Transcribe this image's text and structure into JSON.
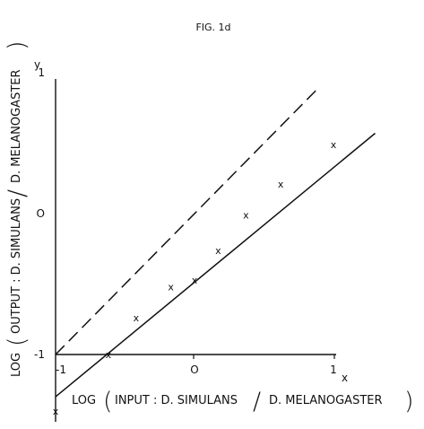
{
  "chart_data": {
    "type": "scatter",
    "title": "FIG. 1d",
    "xlabel": {
      "prefix": "LOG",
      "open": "(",
      "text": "INPUT :   D. SIMULANS",
      "slash": "/",
      "text2": "D. MELANOGASTER",
      "close": ")"
    },
    "ylabel": {
      "prefix": "LOG",
      "open": "(",
      "text": "OUTPUT :   D. SIMULANS",
      "slash": "/",
      "text2": "D. MELANOGASTER",
      "close": ")"
    },
    "axis_names": {
      "x": "x",
      "y": "y"
    },
    "x_ticks": [
      {
        "value": -1,
        "label": "-1"
      },
      {
        "value": 0,
        "label": "O"
      },
      {
        "value": 1,
        "label": "1"
      }
    ],
    "y_ticks": [
      {
        "value": -1,
        "label": "-1"
      },
      {
        "value": 0,
        "label": "O"
      },
      {
        "value": 1,
        "label": "1"
      }
    ],
    "xlim": [
      -1.05,
      1.3
    ],
    "ylim": [
      -1.5,
      1.1
    ],
    "marker": "x",
    "points": [
      {
        "x": -1.0,
        "y": -1.4
      },
      {
        "x": -0.62,
        "y": -1.0
      },
      {
        "x": -0.42,
        "y": -0.74
      },
      {
        "x": -0.17,
        "y": -0.52
      },
      {
        "x": 0.0,
        "y": -0.47
      },
      {
        "x": 0.17,
        "y": -0.26
      },
      {
        "x": 0.37,
        "y": -0.01
      },
      {
        "x": 0.62,
        "y": 0.21
      },
      {
        "x": 1.0,
        "y": 0.49
      }
    ],
    "lines": [
      {
        "style": "dashed",
        "from": [
          -1.0,
          -1.0
        ],
        "to": [
          0.88,
          0.88
        ]
      },
      {
        "style": "solid",
        "from": [
          -1.0,
          -1.3
        ],
        "to": [
          1.3,
          0.57
        ]
      }
    ],
    "colors": {
      "ink": "#111111",
      "background": "#ffffff"
    },
    "grid": false,
    "legend": "none"
  }
}
